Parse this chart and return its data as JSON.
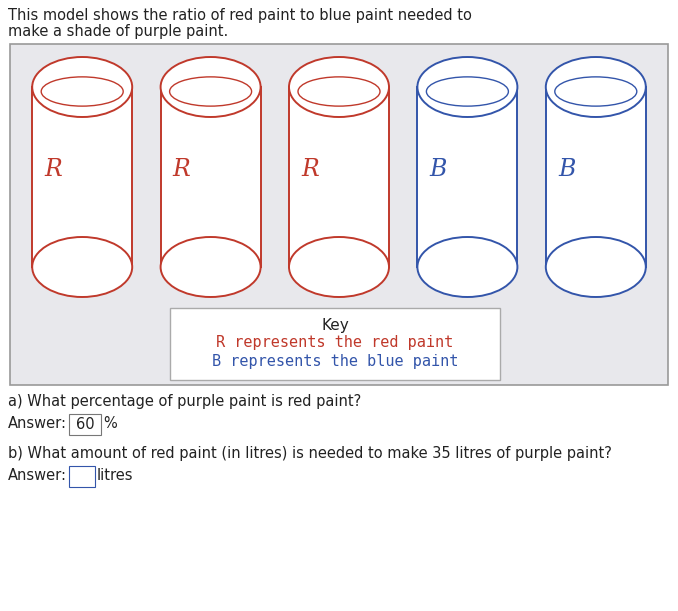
{
  "title_line1": "This model shows the ratio of red paint to blue paint needed to",
  "title_line2": "make a shade of purple paint.",
  "red_color": "#c0392b",
  "blue_color": "#3355aa",
  "black_color": "#222222",
  "bg_color": "#e8e8ec",
  "white_color": "#ffffff",
  "box_edge_color": "#999999",
  "key_edge_color": "#aaaaaa",
  "labels_red": [
    "R",
    "R",
    "R"
  ],
  "labels_blue": [
    "B",
    "B"
  ],
  "key_title": "Key",
  "key_red_text": "R represents the red paint",
  "key_blue_text": "B represents the blue paint",
  "question_a": "a) What percentage of purple paint is red paint?",
  "answer_a_label": "Answer:",
  "answer_a_value": "60",
  "answer_a_unit": "%",
  "question_b": "b) What amount of red paint (in litres) is needed to make 35 litres of purple paint?",
  "answer_b_label": "Answer:",
  "answer_b_unit": "litres",
  "figw": 6.78,
  "figh": 6.11,
  "dpi": 100
}
